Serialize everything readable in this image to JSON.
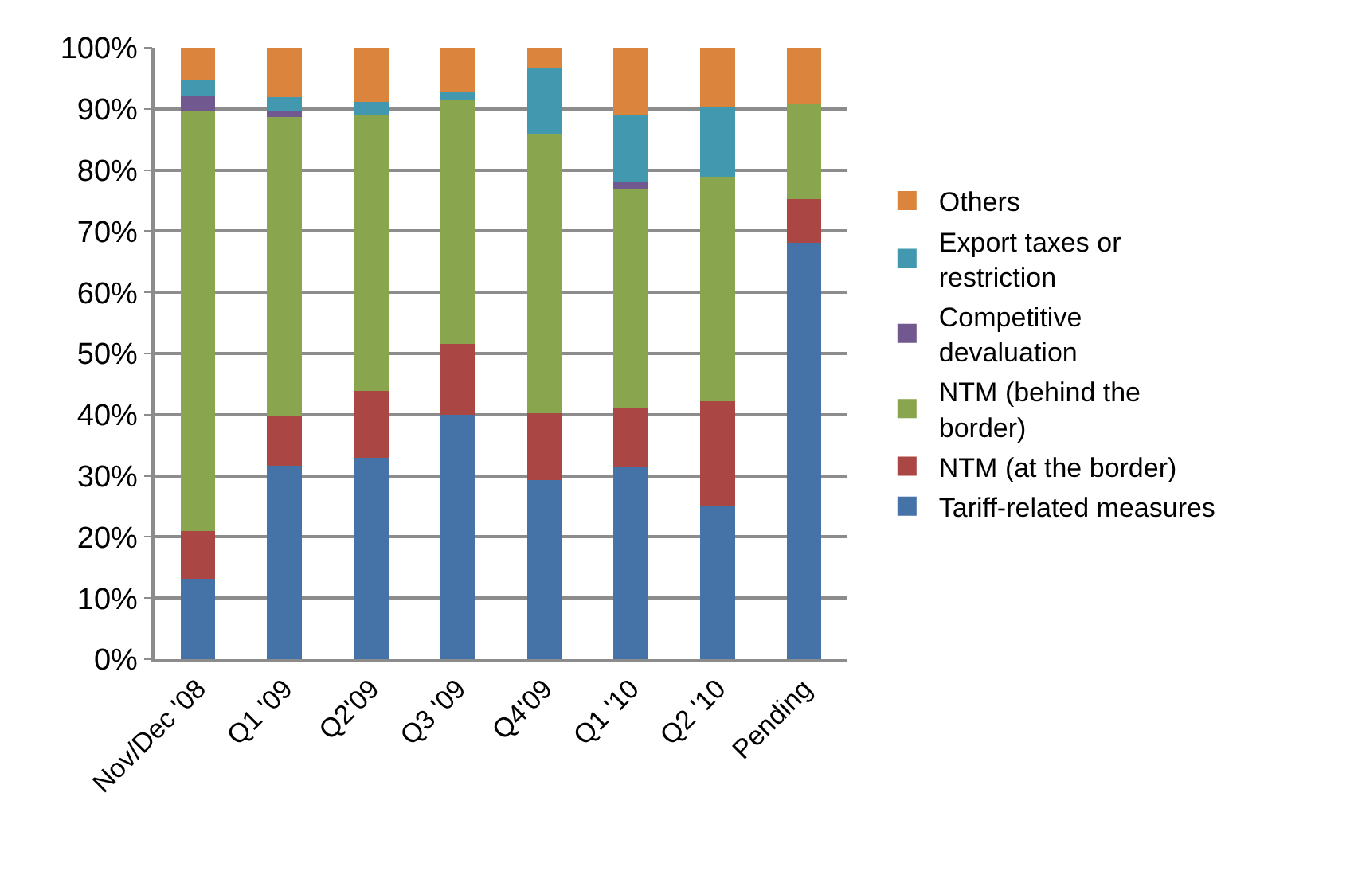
{
  "chart_data": {
    "type": "bar",
    "stacked": true,
    "categories": [
      "Nov/Dec '08",
      "Q1 '09",
      "Q2'09",
      "Q3 '09",
      "Q4'09",
      "Q1 '10",
      "Q2 '10",
      "Pending"
    ],
    "series": [
      {
        "name": "Tariff-related measures",
        "color": "#4572a7",
        "values": [
          13.2,
          31.7,
          33.0,
          40.0,
          29.3,
          31.5,
          25.0,
          68.1
        ]
      },
      {
        "name": "NTM (at the border)",
        "color": "#aa4643",
        "values": [
          7.7,
          8.1,
          10.9,
          11.6,
          10.9,
          9.5,
          17.2,
          7.1
        ]
      },
      {
        "name": "NTM (behind the\nborder)",
        "color": "#89a54e",
        "values": [
          68.7,
          48.9,
          45.2,
          40.0,
          45.7,
          35.8,
          36.7,
          15.7
        ]
      },
      {
        "name": "Competitive\ndevaluation",
        "color": "#71588f",
        "values": [
          2.5,
          0.9,
          0,
          0,
          0,
          1.3,
          0,
          0
        ]
      },
      {
        "name": "Export taxes or\nrestriction",
        "color": "#4198af",
        "values": [
          2.7,
          2.3,
          2.0,
          1.1,
          10.9,
          11.0,
          11.5,
          0
        ]
      },
      {
        "name": "Others",
        "color": "#db843d",
        "values": [
          5.2,
          8.1,
          8.9,
          7.3,
          3.2,
          10.9,
          9.6,
          9.1
        ]
      }
    ],
    "ylim": [
      0,
      100
    ],
    "yticks": [
      {
        "value": 0,
        "label": "0%"
      },
      {
        "value": 10,
        "label": "10%"
      },
      {
        "value": 20,
        "label": "20%"
      },
      {
        "value": 30,
        "label": "30%"
      },
      {
        "value": 40,
        "label": "40%"
      },
      {
        "value": 50,
        "label": "50%"
      },
      {
        "value": 60,
        "label": "60%"
      },
      {
        "value": 70,
        "label": "70%"
      },
      {
        "value": 80,
        "label": "80%"
      },
      {
        "value": 90,
        "label": "90%"
      },
      {
        "value": 100,
        "label": "100%"
      }
    ],
    "grid": "y",
    "legend": "right"
  }
}
